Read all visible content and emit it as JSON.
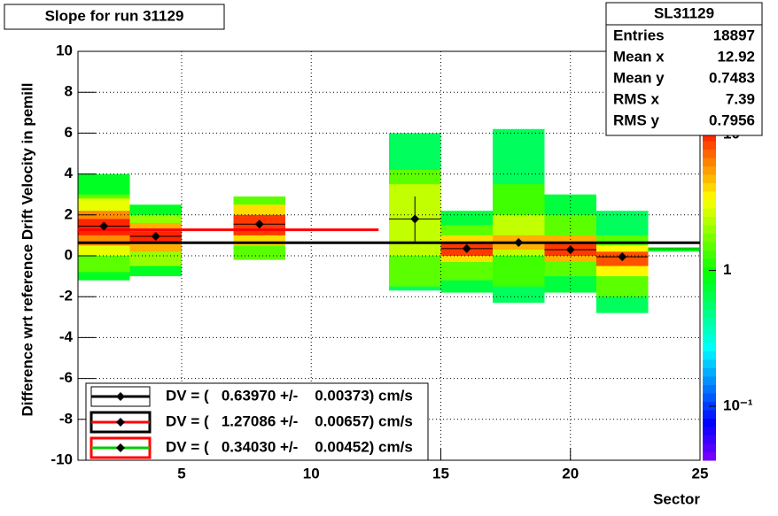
{
  "chart_data": {
    "type": "heatmap-profile",
    "title": "Slope for run 31129",
    "xlabel": "Sector",
    "ylabel": "Difference wrt reference Drift Velocity in pemill",
    "xlim": [
      1,
      25
    ],
    "xticks": [
      5,
      10,
      15,
      20,
      25
    ],
    "ylim": [
      -10,
      10
    ],
    "yticks": [
      -10,
      -8,
      -6,
      -4,
      -2,
      0,
      2,
      4,
      6,
      8,
      10
    ],
    "zlim": [
      0.04,
      12
    ],
    "zticks": [
      {
        "value": 0.1,
        "label": "10⁻¹"
      },
      1,
      10
    ],
    "zlog": true,
    "grid": true,
    "cells": [
      {
        "x": [
          1,
          3
        ],
        "y": [
          -1.2,
          4.0
        ],
        "z": 0.8
      },
      {
        "x": [
          1,
          3
        ],
        "y": [
          -0.8,
          3.0
        ],
        "z": 1.5
      },
      {
        "x": [
          1,
          3
        ],
        "y": [
          0,
          2.8
        ],
        "z": 3
      },
      {
        "x": [
          1,
          3
        ],
        "y": [
          0.5,
          2.2
        ],
        "z": 6
      },
      {
        "x": [
          1,
          3
        ],
        "y": [
          1.0,
          1.8
        ],
        "z": 10
      },
      {
        "x": [
          3,
          5
        ],
        "y": [
          -1.0,
          2.5
        ],
        "z": 0.8
      },
      {
        "x": [
          3,
          5
        ],
        "y": [
          -0.5,
          2.0
        ],
        "z": 2
      },
      {
        "x": [
          3,
          5
        ],
        "y": [
          0.2,
          1.6
        ],
        "z": 5
      },
      {
        "x": [
          3,
          5
        ],
        "y": [
          0.6,
          1.2
        ],
        "z": 10
      },
      {
        "x": [
          7,
          9
        ],
        "y": [
          -0.2,
          2.9
        ],
        "z": 1.5
      },
      {
        "x": [
          7,
          9
        ],
        "y": [
          0.5,
          2.5
        ],
        "z": 4
      },
      {
        "x": [
          7,
          9
        ],
        "y": [
          1.0,
          2.0
        ],
        "z": 9
      },
      {
        "x": [
          13,
          15
        ],
        "y": [
          -1.7,
          6.0
        ],
        "z": 0.6
      },
      {
        "x": [
          13,
          15
        ],
        "y": [
          -1.5,
          4.2
        ],
        "z": 1.5
      },
      {
        "x": [
          13,
          15
        ],
        "y": [
          0,
          3.5
        ],
        "z": 2.5
      },
      {
        "x": [
          15,
          17
        ],
        "y": [
          -1.8,
          2.2
        ],
        "z": 0.7
      },
      {
        "x": [
          15,
          17
        ],
        "y": [
          -1.2,
          1.5
        ],
        "z": 1.5
      },
      {
        "x": [
          15,
          17
        ],
        "y": [
          -0.3,
          1.0
        ],
        "z": 4
      },
      {
        "x": [
          15,
          17
        ],
        "y": [
          0,
          0.6
        ],
        "z": 9
      },
      {
        "x": [
          17,
          19
        ],
        "y": [
          -2.3,
          6.2
        ],
        "z": 0.6
      },
      {
        "x": [
          17,
          19
        ],
        "y": [
          -1.5,
          3.5
        ],
        "z": 1.3
      },
      {
        "x": [
          17,
          19
        ],
        "y": [
          0,
          2.0
        ],
        "z": 2.5
      },
      {
        "x": [
          17,
          19
        ],
        "y": [
          0.3,
          1.0
        ],
        "z": 5
      },
      {
        "x": [
          19,
          21
        ],
        "y": [
          -1.8,
          3.0
        ],
        "z": 0.7
      },
      {
        "x": [
          19,
          21
        ],
        "y": [
          -1.0,
          2.0
        ],
        "z": 1.5
      },
      {
        "x": [
          19,
          21
        ],
        "y": [
          -0.3,
          1.0
        ],
        "z": 5
      },
      {
        "x": [
          19,
          21
        ],
        "y": [
          0,
          0.6
        ],
        "z": 9
      },
      {
        "x": [
          21,
          23
        ],
        "y": [
          -2.8,
          2.2
        ],
        "z": 0.6
      },
      {
        "x": [
          21,
          23
        ],
        "y": [
          -2.0,
          1.0
        ],
        "z": 1.5
      },
      {
        "x": [
          21,
          23
        ],
        "y": [
          -1.0,
          0.5
        ],
        "z": 3.5
      },
      {
        "x": [
          21,
          23
        ],
        "y": [
          -0.5,
          0.2
        ],
        "z": 8
      },
      {
        "x": [
          23,
          25
        ],
        "y": [
          0.2,
          0.4
        ],
        "z": 0.7
      }
    ],
    "profile": {
      "x": [
        2,
        4,
        8,
        14,
        16,
        18,
        20,
        22
      ],
      "values": [
        1.45,
        0.95,
        1.55,
        1.8,
        0.35,
        0.65,
        0.3,
        -0.05
      ],
      "errors": [
        0.1,
        0.1,
        0.1,
        1.1,
        0.1,
        0.1,
        0.1,
        0.1
      ]
    },
    "series": [
      {
        "name": "DV = (   0.63970 +/-    0.00373) cm/s",
        "color": "#000000",
        "value": 0.6397,
        "x_range": [
          1,
          25
        ]
      },
      {
        "name": "DV = (   1.27086 +/-    0.00657) cm/s",
        "color": "#ff0000",
        "value": 1.27086,
        "x_range": [
          1,
          12.6
        ]
      },
      {
        "name": "DV = (   0.34030 +/-    0.00452) cm/s",
        "color": "#00cc00",
        "value": 0.3403,
        "x_range": [
          23,
          25
        ]
      }
    ],
    "stats": {
      "title": "SL31129",
      "rows": [
        [
          "Entries",
          18897
        ],
        [
          "Mean x",
          12.92
        ],
        [
          "Mean y",
          0.7483
        ],
        [
          "RMS x",
          7.39
        ],
        [
          "RMS y",
          0.7956
        ]
      ]
    }
  }
}
